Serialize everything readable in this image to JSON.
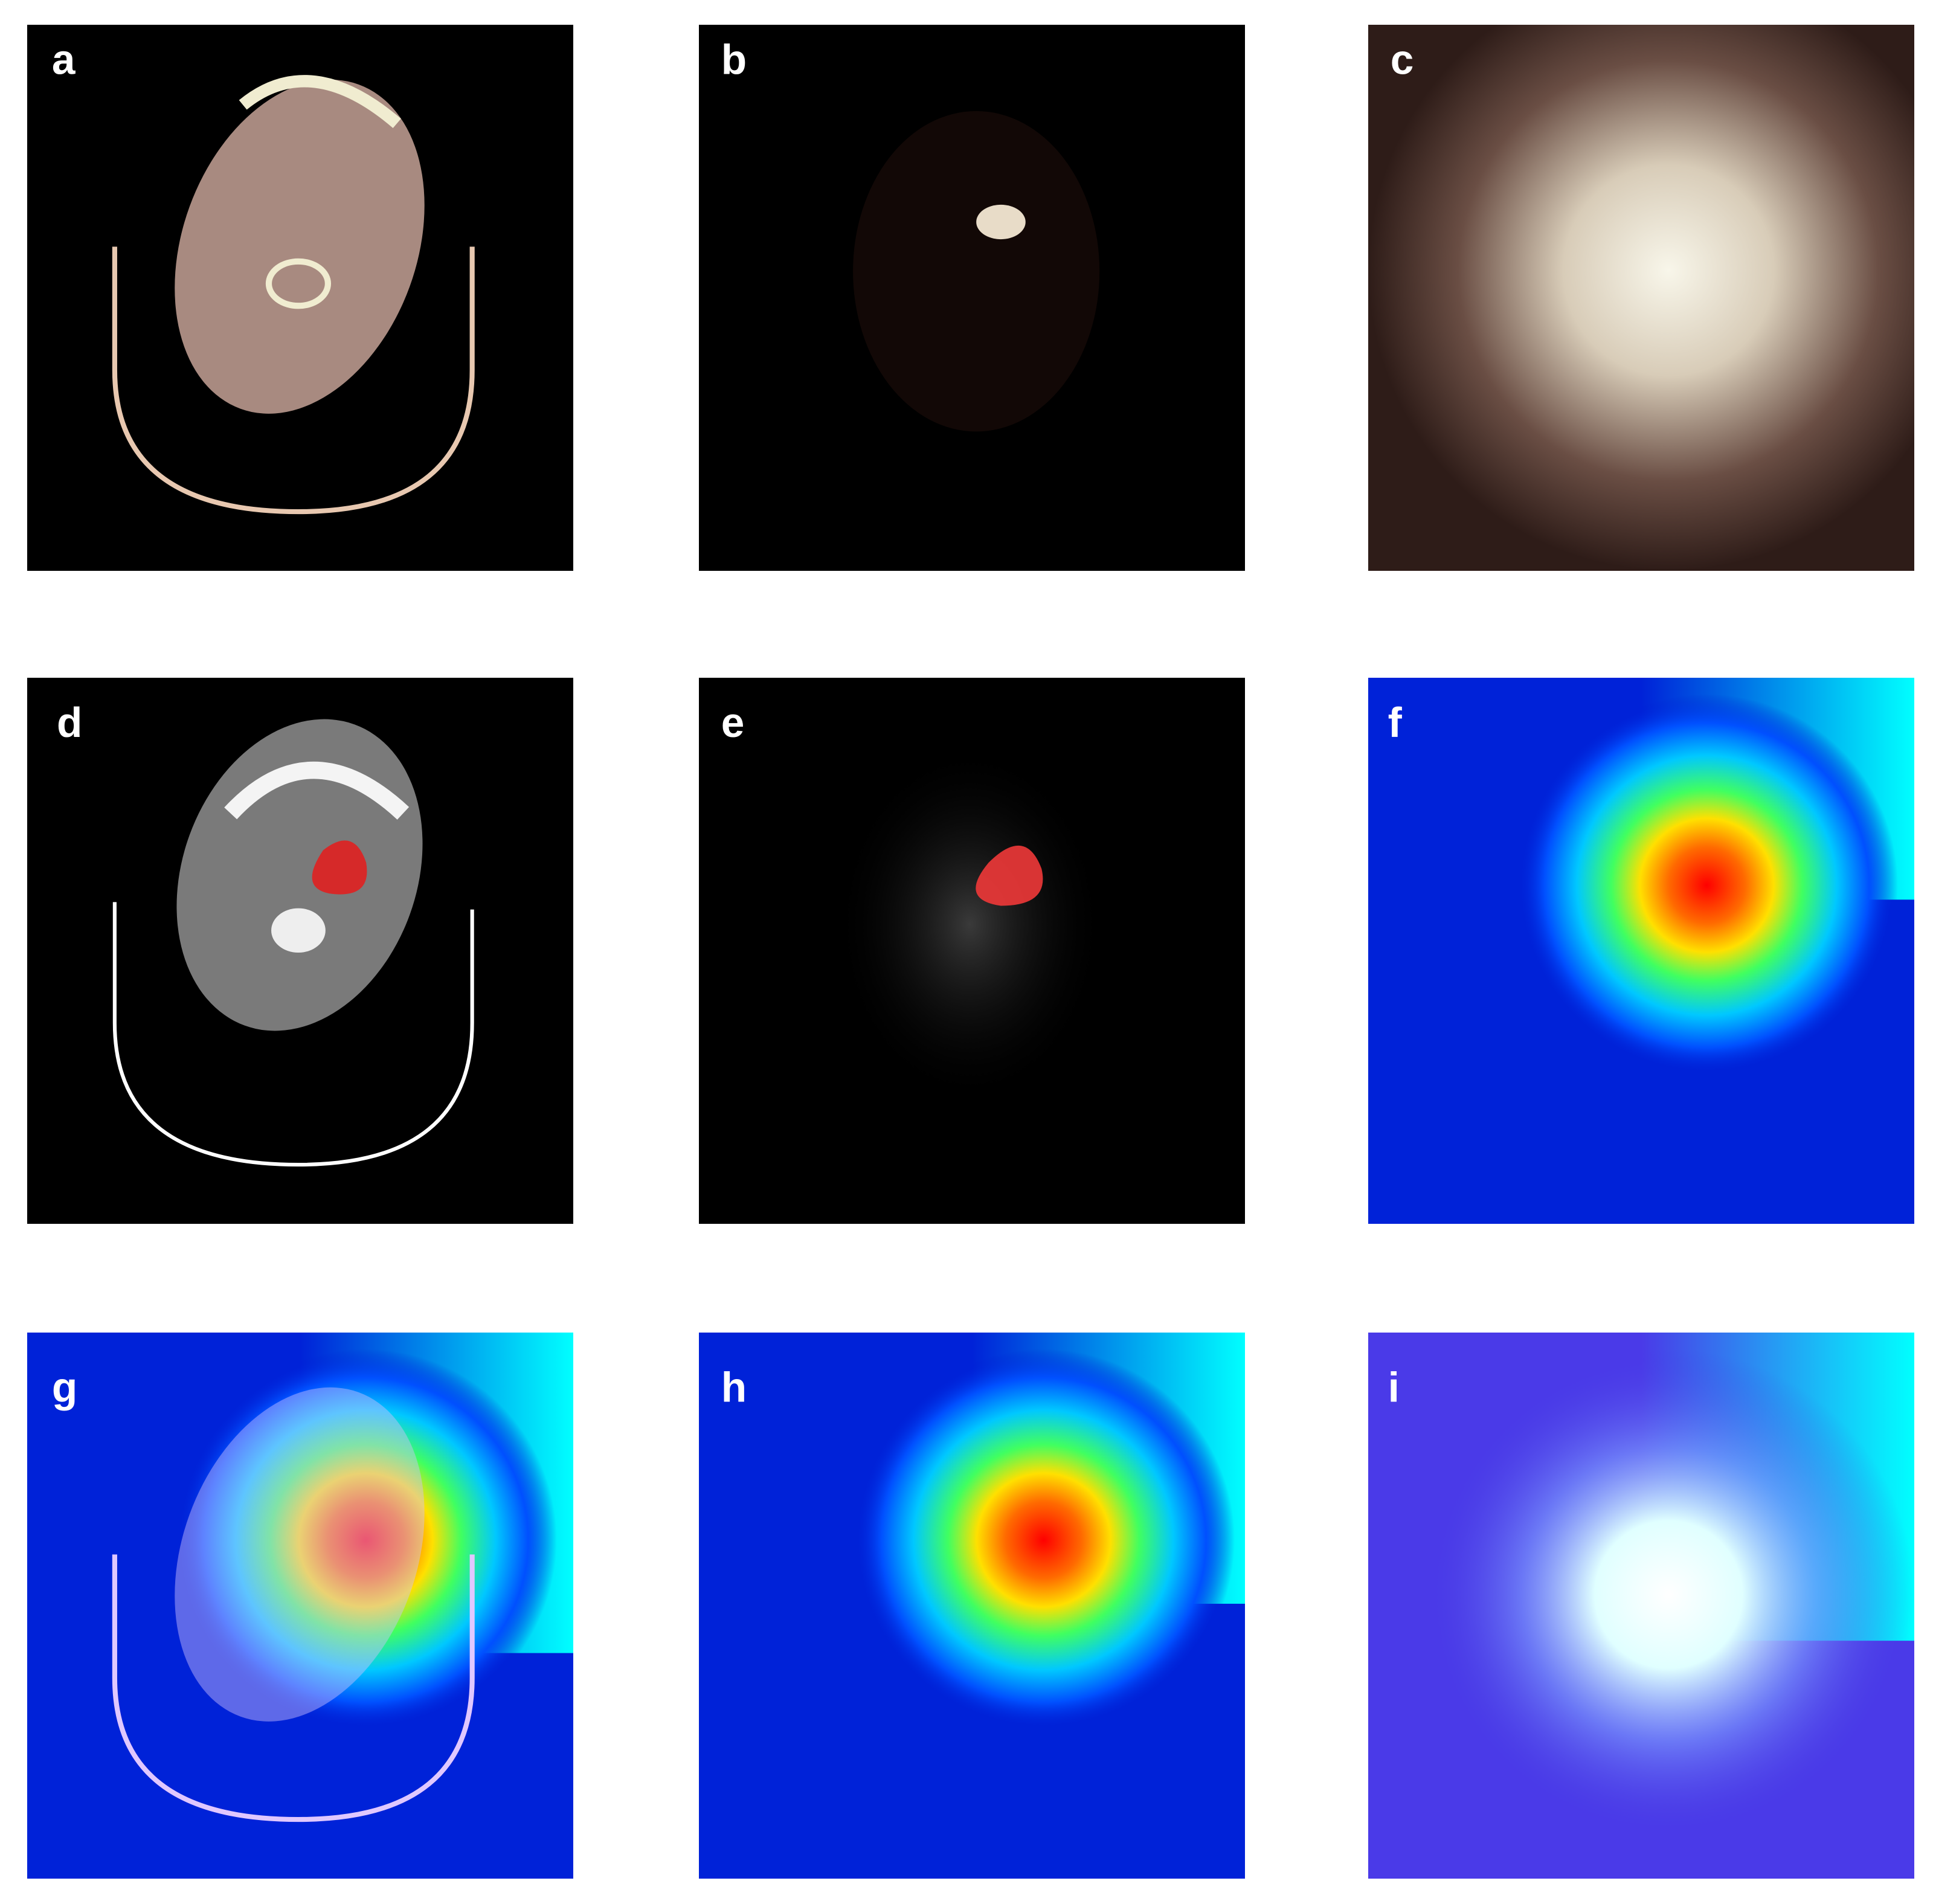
{
  "panels": [
    {
      "label": "a"
    },
    {
      "label": "b"
    },
    {
      "label": "c"
    },
    {
      "label": "d"
    },
    {
      "label": "e"
    },
    {
      "label": "f"
    },
    {
      "label": "g"
    },
    {
      "label": "h"
    },
    {
      "label": "i"
    }
  ]
}
